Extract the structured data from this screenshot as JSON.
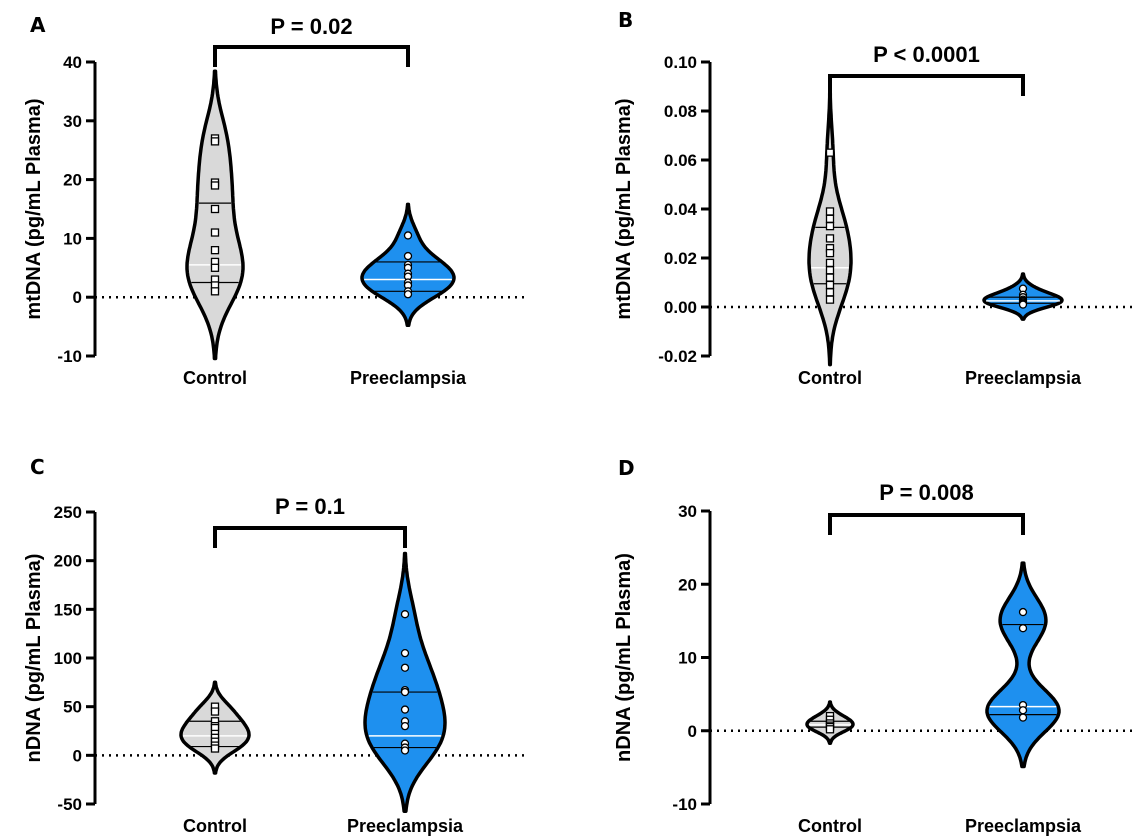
{
  "colors": {
    "control_fill": "#d9d9d9",
    "preeclampsia_fill": "#1e90ef",
    "outline": "#000000"
  },
  "chart_data": [
    {
      "type": "violin",
      "panel": "A",
      "ylabel": "mtDNA (pg/mL Plasma)",
      "categories": [
        "Control",
        "Preeclampsia"
      ],
      "yticks": [
        "40",
        "30",
        "20",
        "10",
        "0",
        "-10"
      ],
      "ylim": [
        -10,
        40
      ],
      "p_value": "P = 0.02",
      "series": [
        {
          "category": "Control",
          "median": 5.5,
          "q1": 2.5,
          "q3": 16,
          "points": [
            27,
            26.5,
            19.5,
            19,
            15,
            11,
            8,
            6,
            5,
            3,
            2,
            1
          ]
        },
        {
          "category": "Preeclampsia",
          "median": 3,
          "q1": 1,
          "q3": 6,
          "points": [
            10.5,
            7,
            5.5,
            5,
            4,
            3.5,
            2.5,
            2,
            1,
            0.5
          ]
        }
      ]
    },
    {
      "type": "violin",
      "panel": "B",
      "ylabel": "mtDNA (pg/mL Plasma)",
      "categories": [
        "Control",
        "Preeclampsia"
      ],
      "yticks": [
        "0.10",
        "0.08",
        "0.06",
        "0.04",
        "0.02",
        "0.00",
        "-0.02"
      ],
      "ylim": [
        -0.02,
        0.1
      ],
      "p_value": "P < 0.0001",
      "series": [
        {
          "category": "Control",
          "median": 0.016,
          "q1": 0.0095,
          "q3": 0.0325,
          "points": [
            0.063,
            0.039,
            0.036,
            0.033,
            0.028,
            0.024,
            0.022,
            0.018,
            0.015,
            0.012,
            0.009,
            0.006,
            0.003
          ]
        },
        {
          "category": "Preeclampsia",
          "median": 0.0025,
          "q1": 0.0015,
          "q3": 0.004,
          "points": [
            0.0075,
            0.005,
            0.004,
            0.003,
            0.0025,
            0.002,
            0.0015,
            0.001
          ]
        }
      ]
    },
    {
      "type": "violin",
      "panel": "C",
      "ylabel": "nDNA (pg/mL Plasma)",
      "categories": [
        "Control",
        "Preeclampsia"
      ],
      "yticks": [
        "250",
        "200",
        "150",
        "100",
        "50",
        "0",
        "-50"
      ],
      "ylim": [
        -50,
        250
      ],
      "p_value": "P = 0.1",
      "series": [
        {
          "category": "Control",
          "median": 20,
          "q1": 9,
          "q3": 35,
          "points": [
            50,
            45,
            35,
            30,
            28,
            22,
            18,
            14,
            10,
            7
          ]
        },
        {
          "category": "Preeclampsia",
          "median": 20,
          "q1": 8,
          "q3": 65,
          "points": [
            145,
            105,
            90,
            67,
            65,
            47,
            35,
            30,
            12,
            8,
            5
          ]
        }
      ]
    },
    {
      "type": "violin",
      "panel": "D",
      "ylabel": "nDNA (pg/mL Plasma)",
      "categories": [
        "Control",
        "Preeclampsia"
      ],
      "yticks": [
        "30",
        "20",
        "10",
        "0",
        "-10"
      ],
      "ylim": [
        -10,
        30
      ],
      "p_value": "P = 0.008",
      "series": [
        {
          "category": "Control",
          "median": 0.8,
          "q1": 0.5,
          "q3": 1.3,
          "points": [
            2.0,
            1.5,
            1.0,
            0.7,
            0.5,
            0.2
          ]
        },
        {
          "category": "Preeclampsia",
          "median": 3.3,
          "q1": 2.2,
          "q3": 14.5,
          "points": [
            16.2,
            14.0,
            3.5,
            2.8,
            1.8
          ]
        }
      ]
    }
  ]
}
